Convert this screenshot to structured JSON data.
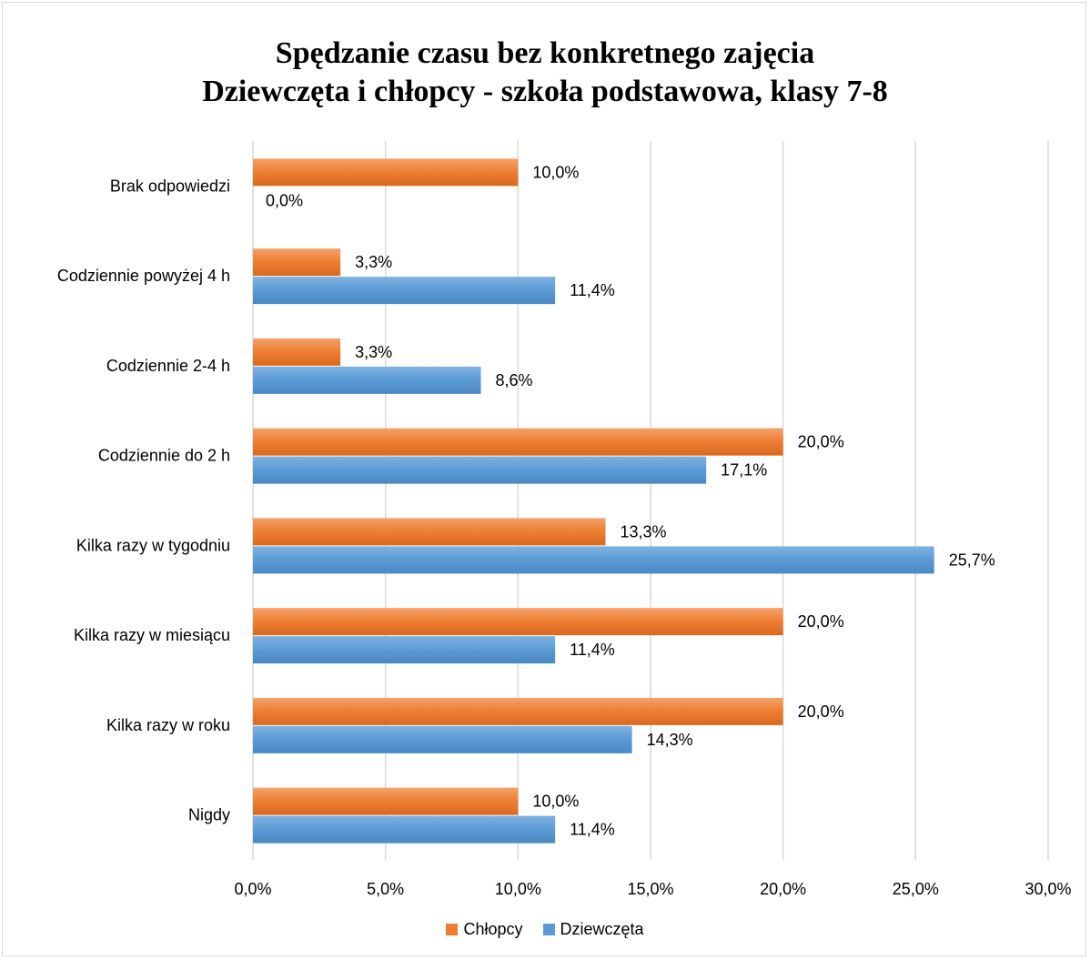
{
  "title_line1": "Spędzanie czasu bez konkretnego zajęcia",
  "title_line2": "Dziewczęta i chłopcy - szkoła podstawowa, klasy 7-8",
  "chart_data": {
    "type": "bar",
    "orientation": "horizontal",
    "categories": [
      "Brak odpowiedzi",
      "Codziennie powyżej 4 h",
      "Codziennie 2-4 h",
      "Codziennie do 2 h",
      "Kilka razy w tygodniu",
      "Kilka razy w miesiącu",
      "Kilka razy w roku",
      "Nigdy"
    ],
    "series": [
      {
        "name": "Chłopcy",
        "color": "#ED7D31",
        "values": [
          10.0,
          3.3,
          3.3,
          20.0,
          13.3,
          20.0,
          20.0,
          10.0
        ],
        "labels": [
          "10,0%",
          "3,3%",
          "3,3%",
          "20,0%",
          "13,3%",
          "20,0%",
          "20,0%",
          "10,0%"
        ]
      },
      {
        "name": "Dziewczęta",
        "color": "#5B9BD5",
        "values": [
          0.0,
          11.4,
          8.6,
          17.1,
          25.7,
          11.4,
          14.3,
          11.4
        ],
        "labels": [
          "0,0%",
          "11,4%",
          "8,6%",
          "17,1%",
          "25,7%",
          "11,4%",
          "14,3%",
          "11,4%"
        ]
      }
    ],
    "xlim": [
      0,
      30
    ],
    "x_ticks": [
      0,
      5,
      10,
      15,
      20,
      25,
      30
    ],
    "x_tick_labels": [
      "0,0%",
      "5,0%",
      "10,0%",
      "15,0%",
      "20,0%",
      "25,0%",
      "30,0%"
    ],
    "grid": true,
    "legend_position": "bottom"
  }
}
